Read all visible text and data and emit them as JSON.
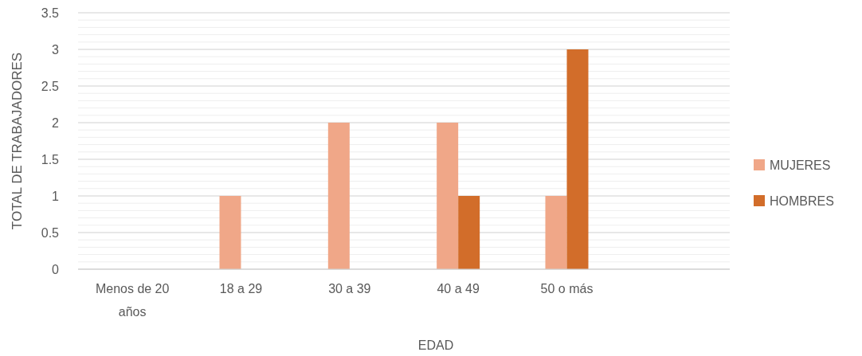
{
  "chart_data": {
    "type": "bar",
    "xlabel": "EDAD",
    "ylabel": "TOTAL DE TRABAJADORES",
    "categories": [
      "Menos de 20 años",
      "18 a 29",
      "30 a 39",
      "40 a 49",
      "50 o más",
      null
    ],
    "series": [
      {
        "name": "MUJERES",
        "color": "#f0a788",
        "values": [
          0,
          1,
          2,
          2,
          1,
          null
        ]
      },
      {
        "name": "HOMBRES",
        "color": "#d26d2a",
        "values": [
          0,
          0,
          0,
          1,
          3,
          null
        ]
      }
    ],
    "ylim": [
      0,
      3.5
    ],
    "yticks": [
      0,
      {
        "value": 0.1,
        "label": null
      },
      {
        "value": 0.2,
        "label": null
      },
      {
        "value": 0.3,
        "label": null
      },
      {
        "value": 0.4,
        "label": null
      },
      0.5,
      {
        "value": 0.6,
        "label": null
      },
      {
        "value": 0.7,
        "label": null
      },
      {
        "value": 0.8,
        "label": null
      },
      {
        "value": 0.9,
        "label": null
      },
      1,
      {
        "value": 1.1,
        "label": null
      },
      {
        "value": 1.2,
        "label": null
      },
      {
        "value": 1.3,
        "label": null
      },
      {
        "value": 1.4,
        "label": null
      },
      1.5,
      {
        "value": 1.6,
        "label": null
      },
      {
        "value": 1.7,
        "label": null
      },
      {
        "value": 1.8,
        "label": null
      },
      {
        "value": 1.9,
        "label": null
      },
      2,
      {
        "value": 2.1,
        "label": null
      },
      {
        "value": 2.2,
        "label": null
      },
      {
        "value": 2.3,
        "label": null
      },
      {
        "value": 2.4,
        "label": null
      },
      2.5,
      {
        "value": 2.6,
        "label": null
      },
      {
        "value": 2.7,
        "label": null
      },
      {
        "value": 2.8,
        "label": null
      },
      {
        "value": 2.9,
        "label": null
      },
      3,
      {
        "value": 3.1,
        "label": null
      },
      {
        "value": 3.2,
        "label": null
      },
      {
        "value": 3.3,
        "label": null
      },
      {
        "value": 3.4,
        "label": null
      },
      3.5
    ],
    "grid": true,
    "legend": "right"
  }
}
